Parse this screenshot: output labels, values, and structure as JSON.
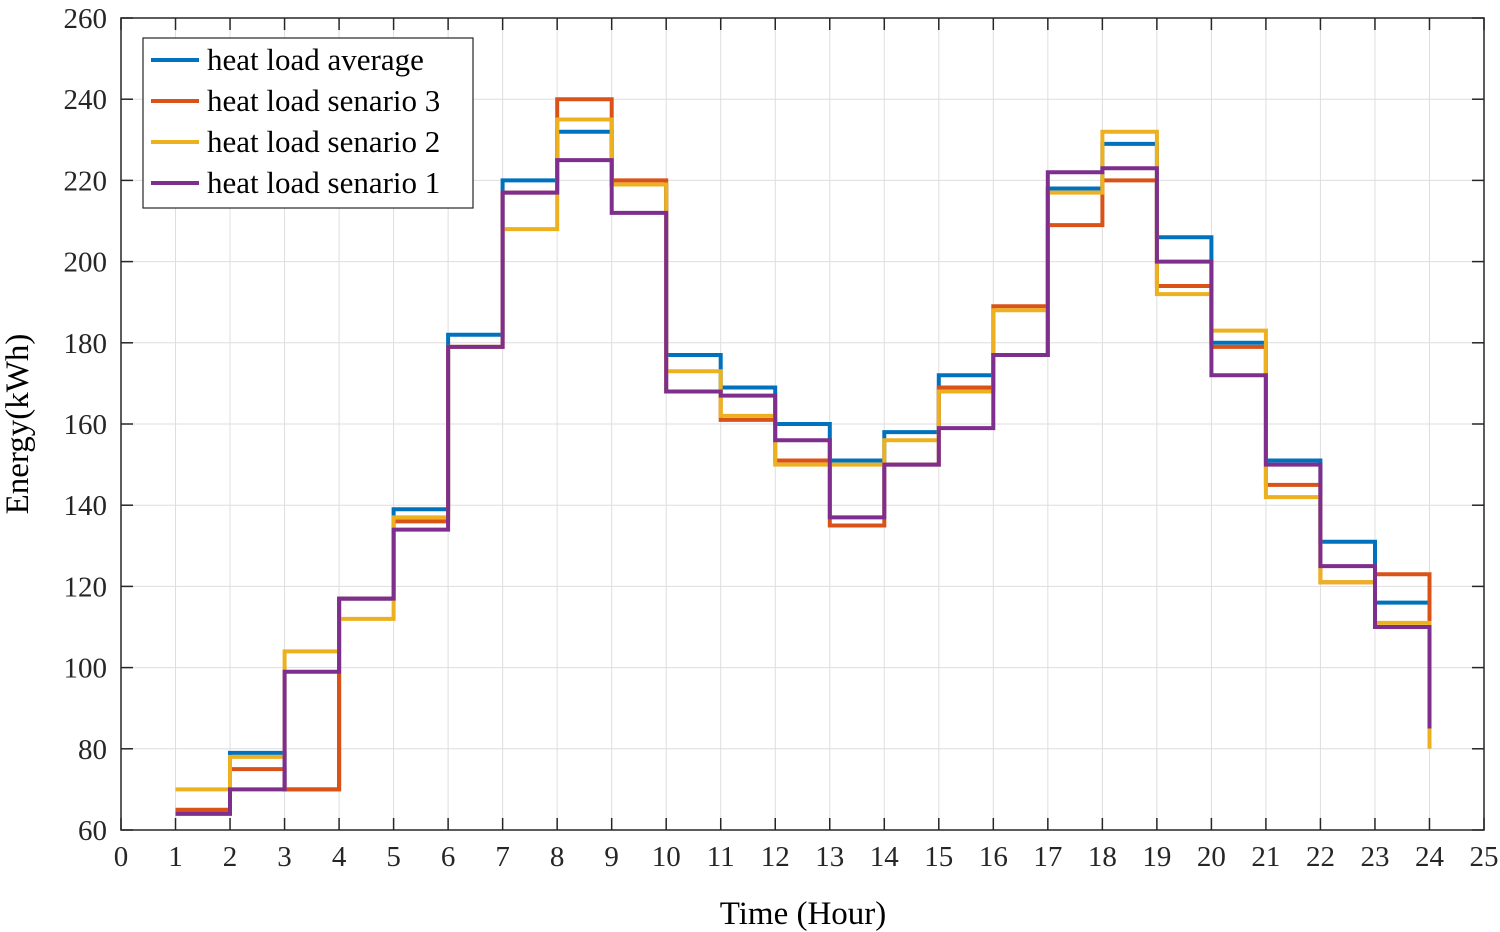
{
  "chart_data": {
    "type": "line",
    "step": "post",
    "title": "",
    "xlabel": "Time (Hour)",
    "ylabel": "Energy(kWh)",
    "xlim": [
      0,
      25
    ],
    "ylim": [
      60,
      260
    ],
    "xticks": [
      0,
      1,
      2,
      3,
      4,
      5,
      6,
      7,
      8,
      9,
      10,
      11,
      12,
      13,
      14,
      15,
      16,
      17,
      18,
      19,
      20,
      21,
      22,
      23,
      24,
      25
    ],
    "yticks": [
      60,
      80,
      100,
      120,
      140,
      160,
      180,
      200,
      220,
      240,
      260
    ],
    "grid": true,
    "legend_position": "top-left",
    "x": [
      1,
      2,
      3,
      4,
      5,
      6,
      7,
      8,
      9,
      10,
      11,
      12,
      13,
      14,
      15,
      16,
      17,
      18,
      19,
      20,
      21,
      22,
      23,
      24
    ],
    "series": [
      {
        "name": "heat load average",
        "color": "#0072BD",
        "values": [
          64,
          79,
          70,
          117,
          139,
          182,
          220,
          232,
          219,
          177,
          169,
          160,
          151,
          158,
          172,
          177,
          218,
          229,
          206,
          180,
          151,
          131,
          116,
          85
        ]
      },
      {
        "name": "heat load senario 3",
        "color": "#D95319",
        "values": [
          65,
          75,
          70,
          117,
          136,
          179,
          217,
          240,
          220,
          168,
          161,
          151,
          135,
          150,
          169,
          189,
          209,
          220,
          194,
          179,
          145,
          121,
          123,
          85
        ]
      },
      {
        "name": "heat load senario 2",
        "color": "#EDB120",
        "values": [
          70,
          78,
          104,
          112,
          137,
          179,
          208,
          235,
          219,
          173,
          162,
          150,
          150,
          156,
          168,
          188,
          217,
          232,
          192,
          183,
          142,
          121,
          111,
          80
        ]
      },
      {
        "name": "heat load senario 1",
        "color": "#7E2F8E",
        "values": [
          64,
          70,
          99,
          117,
          134,
          179,
          217,
          225,
          212,
          168,
          167,
          156,
          137,
          150,
          159,
          177,
          222,
          223,
          200,
          172,
          150,
          125,
          110,
          85
        ]
      }
    ]
  }
}
